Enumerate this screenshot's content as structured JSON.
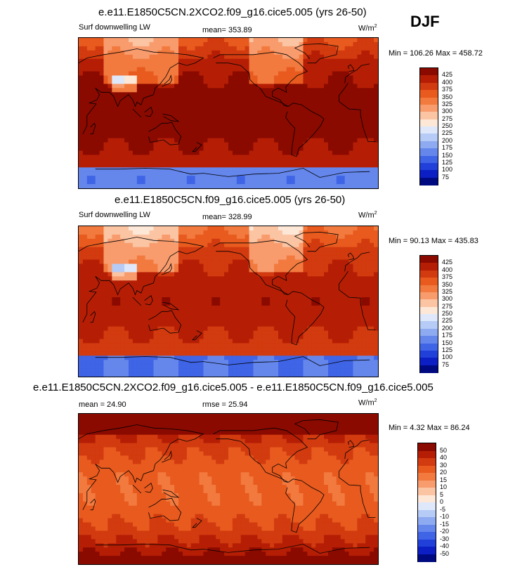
{
  "season": "DJF",
  "panels": [
    {
      "title": "e.e11.E1850C5CN.2XCO2.f09_g16.cice5.005 (yrs 26-50)",
      "left_label": "Surf downwelling LW",
      "center_label": "mean= 353.89",
      "units_base": "W/m",
      "units_exp": "2",
      "minmax": "Min = 106.26 Max = 458.72",
      "colorbar_labels": [
        "425",
        "400",
        "375",
        "350",
        "325",
        "300",
        "275",
        "250",
        "225",
        "200",
        "175",
        "150",
        "125",
        "100",
        "75"
      ],
      "colorbar_colors": [
        "#8a0a00",
        "#b51e05",
        "#d23a0f",
        "#e85a1e",
        "#f27a3f",
        "#f89c6e",
        "#fbc4a3",
        "#fde8d8",
        "#dfe8fb",
        "#b6cbf5",
        "#8eaaf0",
        "#6587ec",
        "#3f64e6",
        "#2140d9",
        "#0b1fc4",
        "#000a80"
      ],
      "field": "abs"
    },
    {
      "title": "e.e11.E1850C5CN.f09_g16.cice5.005 (yrs 26-50)",
      "left_label": "Surf downwelling LW",
      "center_label": "mean= 328.99",
      "units_base": "W/m",
      "units_exp": "2",
      "minmax": "Min = 90.13 Max = 435.83",
      "colorbar_labels": [
        "425",
        "400",
        "375",
        "350",
        "325",
        "300",
        "275",
        "250",
        "225",
        "200",
        "175",
        "150",
        "125",
        "100",
        "75"
      ],
      "colorbar_colors": [
        "#8a0a00",
        "#b51e05",
        "#d23a0f",
        "#e85a1e",
        "#f27a3f",
        "#f89c6e",
        "#fbc4a3",
        "#fde8d8",
        "#dfe8fb",
        "#b6cbf5",
        "#8eaaf0",
        "#6587ec",
        "#3f64e6",
        "#2140d9",
        "#0b1fc4",
        "#000a80"
      ],
      "field": "abs2"
    },
    {
      "title": "e.e11.E1850C5CN.2XCO2.f09_g16.cice5.005 - e.e11.E1850C5CN.f09_g16.cice5.005",
      "left_label": "mean =  24.90",
      "center_label": "rmse =  25.94",
      "units_base": "W/m",
      "units_exp": "2",
      "minmax": "Min =  4.32 Max = 86.24",
      "colorbar_labels": [
        "50",
        "40",
        "30",
        "20",
        "15",
        "10",
        "5",
        "0",
        "-5",
        "-10",
        "-15",
        "-20",
        "-30",
        "-40",
        "-50"
      ],
      "colorbar_colors": [
        "#8a0a00",
        "#b51e05",
        "#d23a0f",
        "#e85a1e",
        "#f27a3f",
        "#f89c6e",
        "#fbc4a3",
        "#fde8d8",
        "#dfe8fb",
        "#b6cbf5",
        "#8eaaf0",
        "#6587ec",
        "#3f64e6",
        "#2140d9",
        "#0b1fc4",
        "#000a80"
      ],
      "field": "diff"
    }
  ],
  "chart_data": [
    {
      "type": "heatmap",
      "title": "e.e11.E1850C5CN.2XCO2.f09_g16.cice5.005 (yrs 26-50)",
      "variable": "Surf downwelling LW",
      "units": "W/m2",
      "mean": 353.89,
      "min": 106.26,
      "max": 458.72,
      "contour_levels": [
        75,
        100,
        125,
        150,
        175,
        200,
        225,
        250,
        275,
        300,
        325,
        350,
        375,
        400,
        425
      ]
    },
    {
      "type": "heatmap",
      "title": "e.e11.E1850C5CN.f09_g16.cice5.005 (yrs 26-50)",
      "variable": "Surf downwelling LW",
      "units": "W/m2",
      "mean": 328.99,
      "min": 90.13,
      "max": 435.83,
      "contour_levels": [
        75,
        100,
        125,
        150,
        175,
        200,
        225,
        250,
        275,
        300,
        325,
        350,
        375,
        400,
        425
      ]
    },
    {
      "type": "heatmap",
      "title": "e.e11.E1850C5CN.2XCO2.f09_g16.cice5.005 - e.e11.E1850C5CN.f09_g16.cice5.005",
      "units": "W/m2",
      "mean": 24.9,
      "rmse": 25.94,
      "min": 4.32,
      "max": 86.24,
      "contour_levels": [
        -50,
        -40,
        -30,
        -20,
        -15,
        -10,
        -5,
        0,
        5,
        10,
        15,
        20,
        30,
        40,
        50
      ]
    }
  ]
}
